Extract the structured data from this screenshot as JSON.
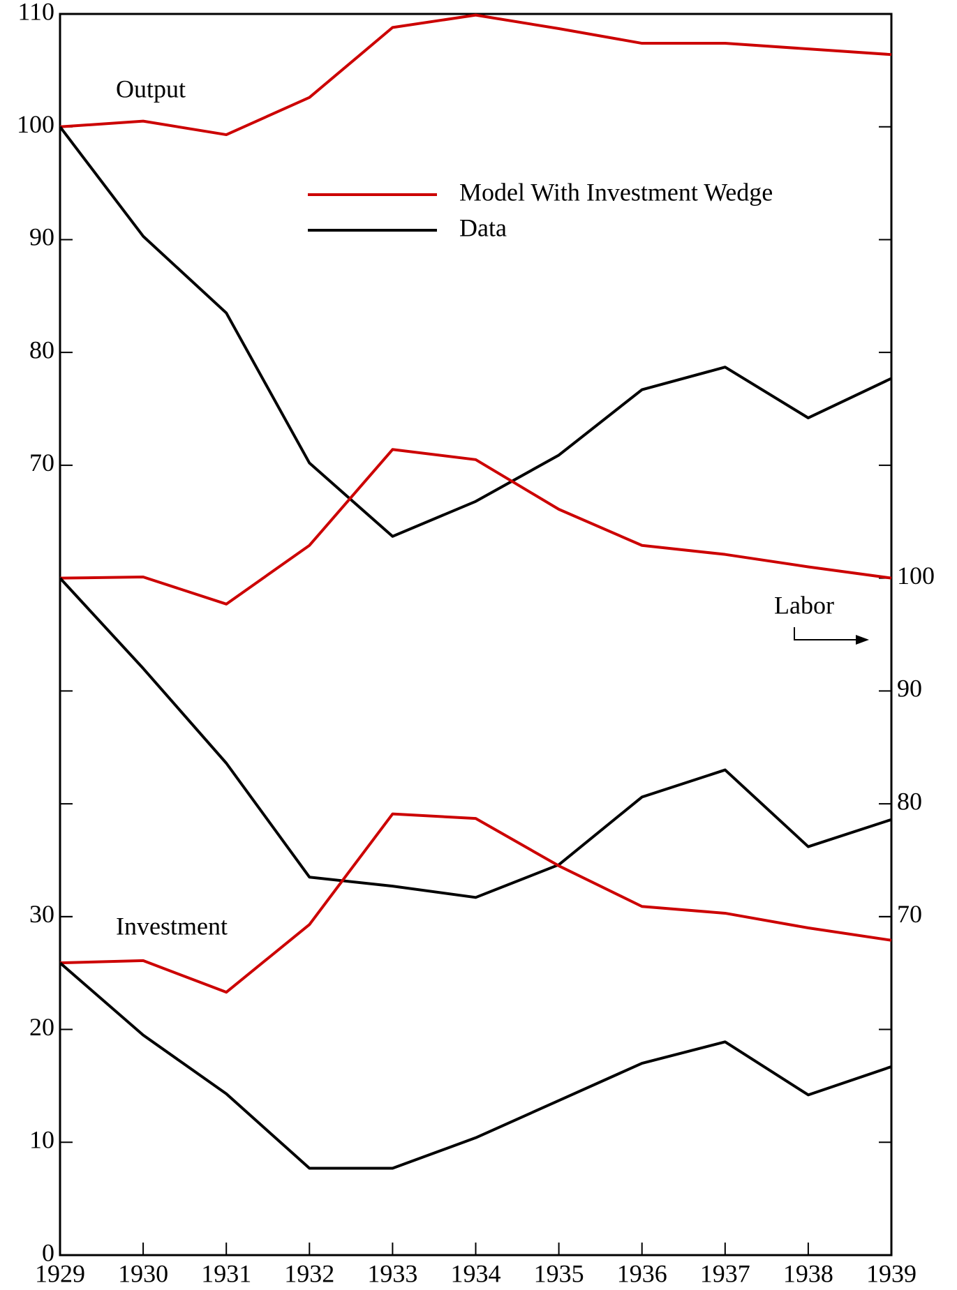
{
  "chart_data": {
    "type": "line",
    "series": [
      {
        "name": "Model With Investment Wedge",
        "color": "#cc0000"
      },
      {
        "name": "Data",
        "color": "#000000"
      }
    ],
    "x": [
      1929,
      1930,
      1931,
      1932,
      1933,
      1934,
      1935,
      1936,
      1937,
      1938,
      1939
    ],
    "groups": [
      {
        "label": "Output",
        "axis": "y",
        "values": [
          [
            100,
            100.5,
            99.3,
            102.6,
            108.8,
            109.9,
            108.7,
            107.4,
            107.4,
            106.9,
            106.4
          ],
          [
            100,
            90.3,
            83.5,
            70.2,
            63.7,
            66.8,
            70.9,
            76.7,
            78.7,
            74.2,
            77.7
          ]
        ]
      },
      {
        "label": "Labor",
        "axis": "y2",
        "values": [
          [
            100,
            100.1,
            97.7,
            102.9,
            111.4,
            110.5,
            106.1,
            102.9,
            102.1,
            101.0,
            100
          ],
          [
            100,
            92.0,
            83.6,
            73.5,
            72.7,
            71.7,
            74.6,
            80.6,
            83.0,
            76.2,
            78.6
          ]
        ]
      },
      {
        "label": "Investment",
        "axis": "y",
        "values": [
          [
            25.9,
            26.1,
            23.3,
            29.3,
            39.1,
            38.7,
            34.5,
            30.9,
            30.3,
            29.0,
            27.9
          ],
          [
            25.9,
            19.5,
            14.3,
            7.7,
            7.7,
            10.4,
            13.7,
            17.0,
            18.9,
            14.2,
            16.7
          ]
        ]
      }
    ],
    "xlim": [
      1929,
      1939
    ],
    "xticks": [
      1929,
      1930,
      1931,
      1932,
      1933,
      1934,
      1935,
      1936,
      1937,
      1938,
      1939
    ],
    "ylim": [
      0,
      110
    ],
    "yticks": [
      0,
      10,
      20,
      30,
      70,
      80,
      90,
      100,
      110
    ],
    "y2lim": [
      40,
      150
    ],
    "y2ticks": [
      70,
      80,
      90,
      100
    ]
  }
}
